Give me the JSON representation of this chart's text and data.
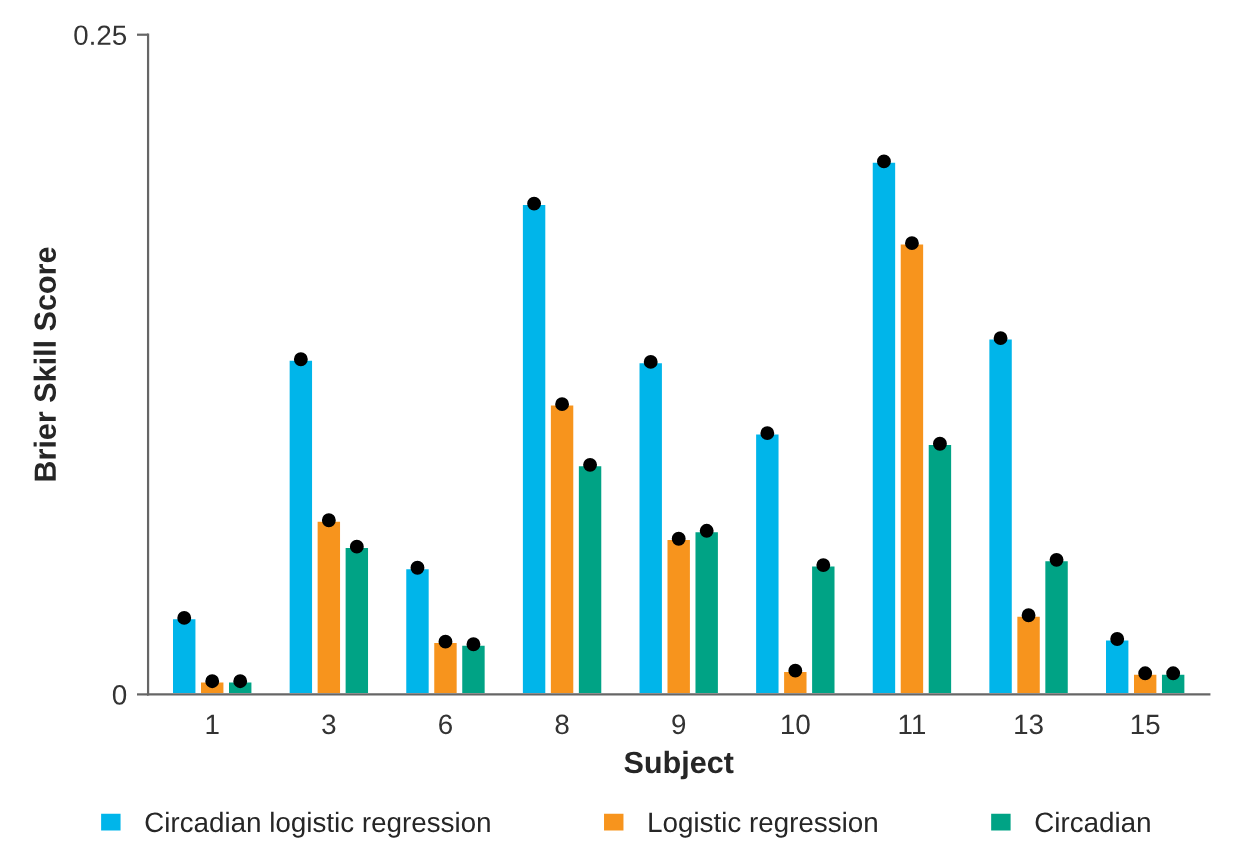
{
  "chart_data": {
    "type": "bar",
    "xlabel": "Subject",
    "ylabel": "Brier Skill Score",
    "categories": [
      "1",
      "3",
      "6",
      "8",
      "9",
      "10",
      "11",
      "13",
      "15"
    ],
    "series": [
      {
        "name": "Circadian logistic regression",
        "color": "#00b5ea",
        "values": [
          0.029,
          0.127,
          0.048,
          0.186,
          0.126,
          0.099,
          0.202,
          0.135,
          0.021
        ]
      },
      {
        "name": "Logistic regression",
        "color": "#f7941d",
        "values": [
          0.005,
          0.066,
          0.02,
          0.11,
          0.059,
          0.009,
          0.171,
          0.03,
          0.008
        ]
      },
      {
        "name": "Circadian",
        "color": "#00a385",
        "values": [
          0.005,
          0.056,
          0.019,
          0.087,
          0.062,
          0.049,
          0.095,
          0.051,
          0.008
        ]
      },
      {
        "type": "scatter",
        "color": "#000000",
        "values": [
          0.029,
          0.127,
          0.048,
          0.186,
          0.126,
          0.099,
          0.202,
          0.135,
          0.021
        ]
      },
      {
        "type": "scatter",
        "color": "#000000",
        "values": [
          0.005,
          0.066,
          0.02,
          0.11,
          0.059,
          0.009,
          0.171,
          0.03,
          0.008
        ]
      },
      {
        "type": "scatter",
        "color": "#000000",
        "values": [
          0.005,
          0.056,
          0.019,
          0.087,
          0.062,
          0.049,
          0.095,
          0.051,
          0.008
        ]
      }
    ],
    "ylim": [
      0,
      0.25
    ],
    "yticks": [
      0,
      0.25
    ],
    "grid": false,
    "legend": "bottom",
    "marker": "circle"
  }
}
